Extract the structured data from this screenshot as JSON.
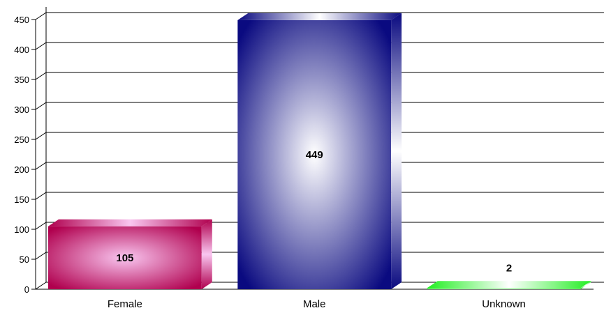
{
  "chart_data": {
    "type": "bar",
    "categories": [
      "Female",
      "Male",
      "Unknown"
    ],
    "values": [
      105,
      449,
      2
    ],
    "data_labels": [
      "105",
      "449",
      "2"
    ],
    "ylim": [
      0,
      450
    ],
    "y_ticks": [
      "0",
      "50",
      "100",
      "150",
      "200",
      "250",
      "300",
      "350",
      "400",
      "450"
    ],
    "grid": true,
    "legend": "none",
    "bar_colors": [
      "#b0004e",
      "#0a0a80",
      "#22ee22"
    ],
    "bar_highlight": [
      "#f9c6f0",
      "#ffffff",
      "#ffffff"
    ]
  }
}
